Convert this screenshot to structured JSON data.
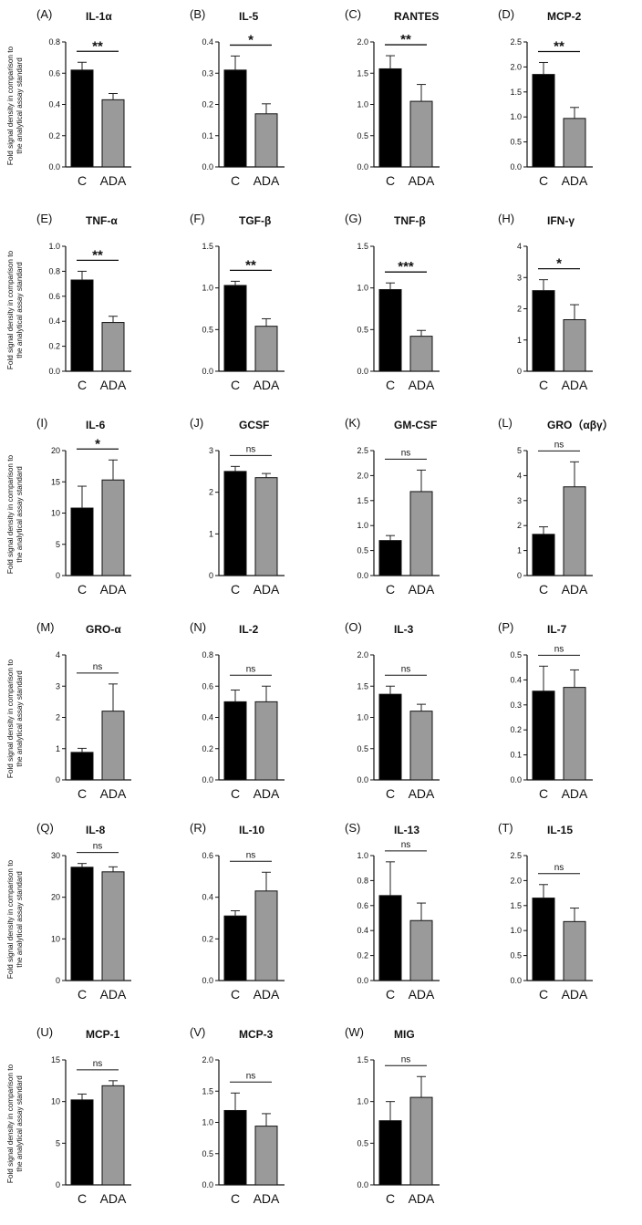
{
  "figure": {
    "y_axis_label_line1": "Fold signal density in comparison to",
    "y_axis_label_line2": "the analytical assay standard",
    "bar_colors": {
      "control": "#000000",
      "treatment": "#9a9a9a"
    }
  },
  "chart_data": [
    {
      "type": "bar",
      "panel": "(A)",
      "title": "IL-1α",
      "categories": [
        "C",
        "ADA"
      ],
      "values": [
        0.62,
        0.43
      ],
      "errors": [
        0.05,
        0.04
      ],
      "yticks": [
        "0.0",
        "0.2",
        "0.4",
        "0.6",
        "0.8"
      ],
      "ylim": [
        0,
        0.8
      ],
      "significance": "**"
    },
    {
      "type": "bar",
      "panel": "(B)",
      "title": "IL-5",
      "categories": [
        "C",
        "ADA"
      ],
      "values": [
        0.31,
        0.17
      ],
      "errors": [
        0.045,
        0.032
      ],
      "yticks": [
        "0.0",
        "0.1",
        "0.2",
        "0.3",
        "0.4"
      ],
      "ylim": [
        0,
        0.4
      ],
      "significance": "*"
    },
    {
      "type": "bar",
      "panel": "(C)",
      "title": "RANTES",
      "categories": [
        "C",
        "ADA"
      ],
      "values": [
        1.57,
        1.05
      ],
      "errors": [
        0.21,
        0.27
      ],
      "yticks": [
        "0.0",
        "0.5",
        "1.0",
        "1.5",
        "2.0"
      ],
      "ylim": [
        0,
        2.0
      ],
      "significance": "**"
    },
    {
      "type": "bar",
      "panel": "(D)",
      "title": "MCP-2",
      "categories": [
        "C",
        "ADA"
      ],
      "values": [
        1.85,
        0.97
      ],
      "errors": [
        0.24,
        0.22
      ],
      "yticks": [
        "0.0",
        "0.5",
        "1.0",
        "1.5",
        "2.0",
        "2.5"
      ],
      "ylim": [
        0,
        2.5
      ],
      "significance": "**"
    },
    {
      "type": "bar",
      "panel": "(E)",
      "title": "TNF-α",
      "categories": [
        "C",
        "ADA"
      ],
      "values": [
        0.73,
        0.39
      ],
      "errors": [
        0.07,
        0.05
      ],
      "yticks": [
        "0.0",
        "0.2",
        "0.4",
        "0.6",
        "0.8",
        "1.0"
      ],
      "ylim": [
        0,
        1.0
      ],
      "significance": "**"
    },
    {
      "type": "bar",
      "panel": "(F)",
      "title": "TGF-β",
      "categories": [
        "C",
        "ADA"
      ],
      "values": [
        1.03,
        0.54
      ],
      "errors": [
        0.05,
        0.09
      ],
      "yticks": [
        "0.0",
        "0.5",
        "1.0",
        "1.5"
      ],
      "ylim": [
        0,
        1.5
      ],
      "significance": "**"
    },
    {
      "type": "bar",
      "panel": "(G)",
      "title": "TNF-β",
      "categories": [
        "C",
        "ADA"
      ],
      "values": [
        0.98,
        0.42
      ],
      "errors": [
        0.08,
        0.07
      ],
      "yticks": [
        "0.0",
        "0.5",
        "1.0",
        "1.5"
      ],
      "ylim": [
        0,
        1.5
      ],
      "significance": "***"
    },
    {
      "type": "bar",
      "panel": "(H)",
      "title": "IFN-γ",
      "categories": [
        "C",
        "ADA"
      ],
      "values": [
        2.58,
        1.65
      ],
      "errors": [
        0.35,
        0.48
      ],
      "yticks": [
        "0",
        "1",
        "2",
        "3",
        "4"
      ],
      "ylim": [
        0,
        4
      ],
      "significance": "*"
    },
    {
      "type": "bar",
      "panel": "(I)",
      "title": "IL-6",
      "categories": [
        "C",
        "ADA"
      ],
      "values": [
        10.8,
        15.3
      ],
      "errors": [
        3.5,
        3.2
      ],
      "yticks": [
        "0",
        "5",
        "10",
        "15",
        "20"
      ],
      "ylim": [
        0,
        20
      ],
      "significance": "*"
    },
    {
      "type": "bar",
      "panel": "(J)",
      "title": "GCSF",
      "categories": [
        "C",
        "ADA"
      ],
      "values": [
        2.5,
        2.35
      ],
      "errors": [
        0.12,
        0.1
      ],
      "yticks": [
        "0",
        "1",
        "2",
        "3"
      ],
      "ylim": [
        0,
        3
      ],
      "significance": "ns"
    },
    {
      "type": "bar",
      "panel": "(K)",
      "title": "GM-CSF",
      "categories": [
        "C",
        "ADA"
      ],
      "values": [
        0.7,
        1.68
      ],
      "errors": [
        0.1,
        0.43
      ],
      "yticks": [
        "0.0",
        "0.5",
        "1.0",
        "1.5",
        "2.0",
        "2.5"
      ],
      "ylim": [
        0,
        2.5
      ],
      "significance": "ns"
    },
    {
      "type": "bar",
      "panel": "(L)",
      "title": "GRO（αβγ）",
      "categories": [
        "C",
        "ADA"
      ],
      "values": [
        1.65,
        3.55
      ],
      "errors": [
        0.3,
        1.0
      ],
      "yticks": [
        "0",
        "1",
        "2",
        "3",
        "4",
        "5"
      ],
      "ylim": [
        0,
        5
      ],
      "significance": "ns"
    },
    {
      "type": "bar",
      "panel": "(M)",
      "title": "GRO-α",
      "categories": [
        "C",
        "ADA"
      ],
      "values": [
        0.88,
        2.2
      ],
      "errors": [
        0.13,
        0.87
      ],
      "yticks": [
        "0",
        "1",
        "2",
        "3",
        "4"
      ],
      "ylim": [
        0,
        4
      ],
      "significance": "ns"
    },
    {
      "type": "bar",
      "panel": "(N)",
      "title": "IL-2",
      "categories": [
        "C",
        "ADA"
      ],
      "values": [
        0.5,
        0.5
      ],
      "errors": [
        0.075,
        0.1
      ],
      "yticks": [
        "0.0",
        "0.2",
        "0.4",
        "0.6",
        "0.8"
      ],
      "ylim": [
        0,
        0.8
      ],
      "significance": "ns"
    },
    {
      "type": "bar",
      "panel": "(O)",
      "title": "IL-3",
      "categories": [
        "C",
        "ADA"
      ],
      "values": [
        1.37,
        1.1
      ],
      "errors": [
        0.13,
        0.11
      ],
      "yticks": [
        "0.0",
        "0.5",
        "1.0",
        "1.5",
        "2.0"
      ],
      "ylim": [
        0,
        2.0
      ],
      "significance": "ns"
    },
    {
      "type": "bar",
      "panel": "(P)",
      "title": "IL-7",
      "categories": [
        "C",
        "ADA"
      ],
      "values": [
        0.355,
        0.37
      ],
      "errors": [
        0.1,
        0.07
      ],
      "yticks": [
        "0.0",
        "0.1",
        "0.2",
        "0.3",
        "0.4",
        "0.5"
      ],
      "ylim": [
        0,
        0.5
      ],
      "significance": "ns"
    },
    {
      "type": "bar",
      "panel": "(Q)",
      "title": "IL-8",
      "categories": [
        "C",
        "ADA"
      ],
      "values": [
        27.2,
        26.1
      ],
      "errors": [
        0.9,
        1.2
      ],
      "yticks": [
        "0",
        "10",
        "20",
        "30"
      ],
      "ylim": [
        0,
        30
      ],
      "significance": "ns"
    },
    {
      "type": "bar",
      "panel": "(R)",
      "title": "IL-10",
      "categories": [
        "C",
        "ADA"
      ],
      "values": [
        0.31,
        0.43
      ],
      "errors": [
        0.025,
        0.09
      ],
      "yticks": [
        "0.0",
        "0.2",
        "0.4",
        "0.6"
      ],
      "ylim": [
        0,
        0.6
      ],
      "significance": "ns"
    },
    {
      "type": "bar",
      "panel": "(S)",
      "title": "IL-13",
      "categories": [
        "C",
        "ADA"
      ],
      "values": [
        0.68,
        0.48
      ],
      "errors": [
        0.27,
        0.14
      ],
      "yticks": [
        "0.0",
        "0.2",
        "0.4",
        "0.6",
        "0.8",
        "1.0"
      ],
      "ylim": [
        0,
        1.0
      ],
      "significance": "ns"
    },
    {
      "type": "bar",
      "panel": "(T)",
      "title": "IL-15",
      "categories": [
        "C",
        "ADA"
      ],
      "values": [
        1.65,
        1.18
      ],
      "errors": [
        0.27,
        0.27
      ],
      "yticks": [
        "0.0",
        "0.5",
        "1.0",
        "1.5",
        "2.0",
        "2.5"
      ],
      "ylim": [
        0,
        2.5
      ],
      "significance": "ns"
    },
    {
      "type": "bar",
      "panel": "(U)",
      "title": "MCP-1",
      "categories": [
        "C",
        "ADA"
      ],
      "values": [
        10.2,
        11.9
      ],
      "errors": [
        0.7,
        0.6
      ],
      "yticks": [
        "0",
        "5",
        "10",
        "15"
      ],
      "ylim": [
        0,
        15
      ],
      "significance": "ns"
    },
    {
      "type": "bar",
      "panel": "(V)",
      "title": "MCP-3",
      "categories": [
        "C",
        "ADA"
      ],
      "values": [
        1.19,
        0.94
      ],
      "errors": [
        0.28,
        0.2
      ],
      "yticks": [
        "0.0",
        "0.5",
        "1.0",
        "1.5",
        "2.0"
      ],
      "ylim": [
        0,
        2.0
      ],
      "significance": "ns"
    },
    {
      "type": "bar",
      "panel": "(W)",
      "title": "MIG",
      "categories": [
        "C",
        "ADA"
      ],
      "values": [
        0.77,
        1.05
      ],
      "errors": [
        0.23,
        0.25
      ],
      "yticks": [
        "0.0",
        "0.5",
        "1.0",
        "1.5"
      ],
      "ylim": [
        0,
        1.5
      ],
      "significance": "ns"
    }
  ]
}
